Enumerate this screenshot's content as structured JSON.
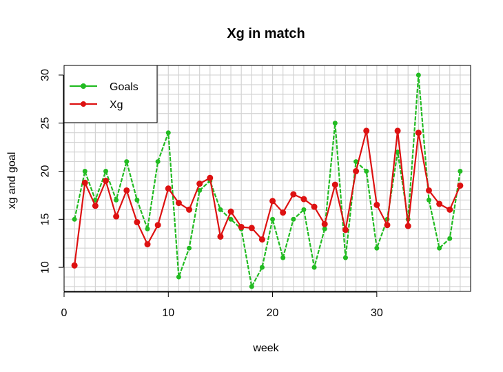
{
  "chart_data": {
    "type": "line",
    "title": "Xg in match",
    "xlabel": "week",
    "ylabel": "xg and goal",
    "xlim": [
      0,
      39
    ],
    "ylim": [
      7.5,
      31
    ],
    "xticks": [
      0,
      10,
      20,
      30
    ],
    "yticks": [
      10,
      15,
      20,
      25,
      30
    ],
    "grid": true,
    "legend_position": "top-left",
    "x": [
      1,
      2,
      3,
      4,
      5,
      6,
      7,
      8,
      9,
      10,
      11,
      12,
      13,
      14,
      15,
      16,
      17,
      18,
      19,
      20,
      21,
      22,
      23,
      24,
      25,
      26,
      27,
      28,
      29,
      30,
      31,
      32,
      33,
      34,
      35,
      36,
      37,
      38
    ],
    "series": [
      {
        "name": "Goals",
        "color": "#22bb22",
        "values": [
          15,
          20,
          17,
          20,
          17,
          21,
          17,
          14,
          21,
          24,
          9,
          12,
          18,
          19,
          16,
          15,
          14,
          8,
          10,
          15,
          11,
          15,
          16,
          10,
          14,
          25,
          11,
          21,
          20,
          12,
          15,
          22,
          15,
          30,
          17,
          12,
          13,
          20
        ]
      },
      {
        "name": "Xg",
        "color": "#dd1111",
        "values": [
          10.2,
          18.8,
          16.4,
          19.0,
          15.3,
          18.0,
          14.7,
          12.4,
          14.4,
          18.2,
          16.7,
          16.0,
          18.7,
          19.3,
          13.2,
          15.8,
          14.2,
          14.1,
          12.9,
          16.9,
          15.7,
          17.6,
          17.1,
          16.3,
          14.5,
          18.6,
          13.9,
          20.0,
          24.2,
          16.5,
          14.4,
          24.2,
          14.3,
          24.0,
          18.0,
          16.6,
          16.0,
          18.5
        ]
      }
    ]
  }
}
